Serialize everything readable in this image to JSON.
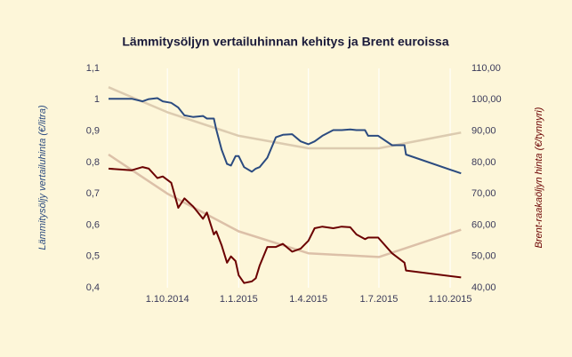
{
  "chart_data": {
    "type": "line",
    "title": "Lämmitysöljyn vertailuhinnan kehitys ja Brent euroissa",
    "ylabel": "Lämmitysöljy vertailuhinta (€/litra)",
    "y2label": "Brent-raakaöljyn hinta (€/tynnyri)",
    "x": [
      "2014-07-17",
      "2014-08-16",
      "2014-08-30",
      "2014-09-07",
      "2014-09-18",
      "2014-09-25",
      "2014-10-06",
      "2014-10-15",
      "2014-10-23",
      "2014-11-03",
      "2014-11-16",
      "2014-11-21",
      "2014-11-30",
      "2014-12-03",
      "2014-12-10",
      "2014-12-17",
      "2014-12-22",
      "2014-12-28",
      "2015-01-01",
      "2015-01-08",
      "2015-01-18",
      "2015-01-23",
      "2015-01-28",
      "2015-02-07",
      "2015-02-18",
      "2015-02-27",
      "2015-03-11",
      "2015-03-22",
      "2015-04-01",
      "2015-04-09",
      "2015-04-19",
      "2015-05-03",
      "2015-05-14",
      "2015-05-25",
      "2015-06-02",
      "2015-06-13",
      "2015-06-17",
      "2015-06-30",
      "2015-07-18",
      "2015-08-03",
      "2015-08-05",
      "2015-10-15"
    ],
    "xlim": [
      "2014-07-17",
      "2015-10-17"
    ],
    "xticks": [
      {
        "value": "2014-10-01",
        "label": "1.10.2014"
      },
      {
        "value": "2015-01-01",
        "label": "1.1.2015"
      },
      {
        "value": "2015-04-01",
        "label": "1.4.2015"
      },
      {
        "value": "2015-07-01",
        "label": "1.7.2015"
      },
      {
        "value": "2015-10-01",
        "label": "1.10.2015"
      }
    ],
    "ylim": [
      0.4,
      1.1
    ],
    "yticks": [
      {
        "value": 0.4,
        "label": "0,4"
      },
      {
        "value": 0.5,
        "label": "0,5"
      },
      {
        "value": 0.6,
        "label": "0,6"
      },
      {
        "value": 0.7,
        "label": "0,7"
      },
      {
        "value": 0.8,
        "label": "0,8"
      },
      {
        "value": 0.9,
        "label": "0,9"
      },
      1,
      {
        "value": 1.1,
        "label": "1,1"
      }
    ],
    "y2lim": [
      40,
      110
    ],
    "y2ticks": [
      {
        "value": 40,
        "label": "40,00"
      },
      {
        "value": 50,
        "label": "50,00"
      },
      {
        "value": 60,
        "label": "60,00"
      },
      {
        "value": 70,
        "label": "70,00"
      },
      {
        "value": 80,
        "label": "80,00"
      },
      {
        "value": 90,
        "label": "90,00"
      },
      {
        "value": 100,
        "label": "100,00"
      },
      {
        "value": 110,
        "label": "110,00"
      }
    ],
    "grid": true,
    "series": [
      {
        "color": "#dccbb0",
        "x": [
          "2014-07-17",
          "2014-10-01",
          "2015-01-01",
          "2015-04-01",
          "2015-07-01",
          "2015-10-15"
        ],
        "values": [
          1.04,
          0.96,
          0.885,
          0.845,
          0.845,
          0.895
        ]
      },
      {
        "color": "#dcc0a8",
        "axis": "y2",
        "x": [
          "2014-07-17",
          "2014-10-01",
          "2015-01-01",
          "2015-04-01",
          "2015-07-01",
          "2015-10-15"
        ],
        "values": [
          82.5,
          70,
          58,
          51,
          49.8,
          58.5
        ]
      },
      {
        "color": "#2b4b80",
        "values": [
          1.003,
          1.003,
          0.995,
          1.002,
          1.005,
          0.995,
          0.99,
          0.975,
          0.95,
          0.945,
          0.948,
          0.94,
          0.94,
          0.905,
          0.84,
          0.795,
          0.79,
          0.82,
          0.82,
          0.785,
          0.77,
          0.78,
          0.785,
          0.815,
          0.88,
          0.888,
          0.89,
          0.867,
          0.858,
          0.867,
          0.885,
          0.903,
          0.903,
          0.905,
          0.903,
          0.903,
          0.885,
          0.885,
          0.855,
          0.855,
          0.825,
          0.765
        ]
      },
      {
        "color": "#6b0000",
        "axis": "y2",
        "values": [
          78,
          77.5,
          78.5,
          78,
          75,
          75.5,
          73.5,
          65.5,
          68.5,
          66,
          62,
          64,
          57,
          58,
          53.5,
          48,
          50,
          48.5,
          44,
          41.5,
          42,
          43,
          47,
          53,
          53,
          54,
          51.5,
          52.5,
          55,
          59,
          59.5,
          59,
          59.5,
          59.3,
          57,
          55.5,
          56,
          56,
          51,
          48,
          45.5,
          43.3
        ]
      }
    ]
  }
}
